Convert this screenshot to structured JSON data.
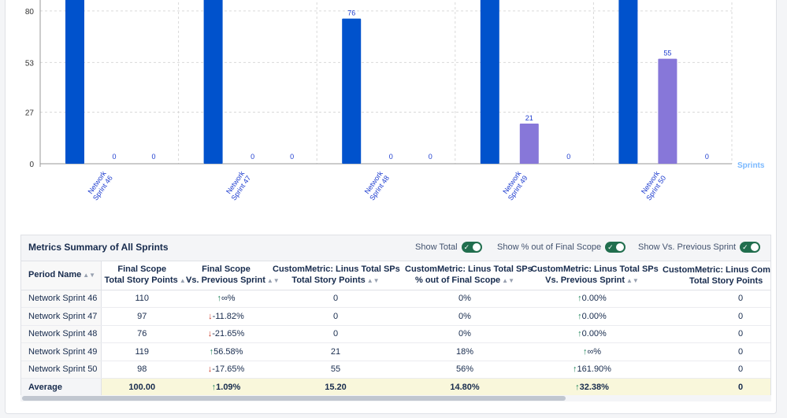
{
  "chart_data": {
    "type": "bar",
    "categories": [
      "Network Sprint 46",
      "Network Sprint 47",
      "Network Sprint 48",
      "Network Sprint 49",
      "Network Sprint 50"
    ],
    "category_labels": [
      [
        "Network",
        "Sprint 46"
      ],
      [
        "Network",
        "Sprint 47"
      ],
      [
        "Network",
        "Sprint 48"
      ],
      [
        "Network",
        "Sprint 49"
      ],
      [
        "Network",
        "Sprint 50"
      ]
    ],
    "series": [
      {
        "name": "Final Scope Total Story Points",
        "color": "#0052cc",
        "values": [
          110,
          97,
          76,
          119,
          98
        ],
        "labels": [
          "",
          "",
          "76",
          "",
          ""
        ]
      },
      {
        "name": "CustomMetric: Linus Total SPs",
        "color": "#8777d9",
        "values": [
          0,
          0,
          0,
          21,
          55
        ],
        "labels": [
          "0",
          "0",
          "0",
          "21",
          "55"
        ]
      },
      {
        "name": "CustomMetric: Linus Compl SPs",
        "color": "#4c9aff",
        "values": [
          0,
          0,
          0,
          0,
          0
        ],
        "labels": [
          "0",
          "0",
          "0",
          "0",
          "0"
        ]
      }
    ],
    "yticks": [
      "0",
      "27",
      "53",
      "80"
    ],
    "ytick_values": [
      0,
      27,
      53,
      80
    ],
    "xlabel": "Sprints",
    "ylim_visible": [
      0,
      90
    ],
    "grid": true
  },
  "summary": {
    "title": "Metrics Summary of All Sprints",
    "toggles": [
      {
        "label": "Show Total",
        "on": true
      },
      {
        "label": "Show % out of Final Scope",
        "on": true
      },
      {
        "label": "Show Vs. Previous Sprint",
        "on": true
      }
    ],
    "headers": [
      [
        "Period Name",
        ""
      ],
      [
        "Final Scope",
        "Total Story Points"
      ],
      [
        "Final Scope",
        "Vs. Previous Sprint"
      ],
      [
        "CustomMetric: Linus Total SPs",
        "Total Story Points"
      ],
      [
        "CustomMetric: Linus Total SPs",
        "% out of Final Scope"
      ],
      [
        "CustomMetric: Linus Total SPs",
        "Vs. Previous Sprint"
      ],
      [
        "CustomMetric: Linus Compl SPs",
        "Total Story Points"
      ]
    ],
    "rows": [
      {
        "name": "Network Sprint 46",
        "scope": "110",
        "scope_vs": "∞%",
        "scope_dir": "up",
        "lt": "0",
        "lt_pct": "0%",
        "lt_vs": "0.00%",
        "lt_dir": "up",
        "lc": "0"
      },
      {
        "name": "Network Sprint 47",
        "scope": "97",
        "scope_vs": "-11.82%",
        "scope_dir": "down",
        "lt": "0",
        "lt_pct": "0%",
        "lt_vs": "0.00%",
        "lt_dir": "up",
        "lc": "0"
      },
      {
        "name": "Network Sprint 48",
        "scope": "76",
        "scope_vs": "-21.65%",
        "scope_dir": "down",
        "lt": "0",
        "lt_pct": "0%",
        "lt_vs": "0.00%",
        "lt_dir": "up",
        "lc": "0"
      },
      {
        "name": "Network Sprint 49",
        "scope": "119",
        "scope_vs": "56.58%",
        "scope_dir": "up",
        "lt": "21",
        "lt_pct": "18%",
        "lt_vs": "∞%",
        "lt_dir": "up",
        "lc": "0"
      },
      {
        "name": "Network Sprint 50",
        "scope": "98",
        "scope_vs": "-17.65%",
        "scope_dir": "down",
        "lt": "55",
        "lt_pct": "56%",
        "lt_vs": "161.90%",
        "lt_dir": "up",
        "lc": "0"
      }
    ],
    "average": {
      "name": "Average",
      "scope": "100.00",
      "scope_vs": "1.09%",
      "scope_dir": "up",
      "lt": "15.20",
      "lt_pct": "14.80%",
      "lt_vs": "32.38%",
      "lt_dir": "up",
      "lc": "0"
    }
  }
}
